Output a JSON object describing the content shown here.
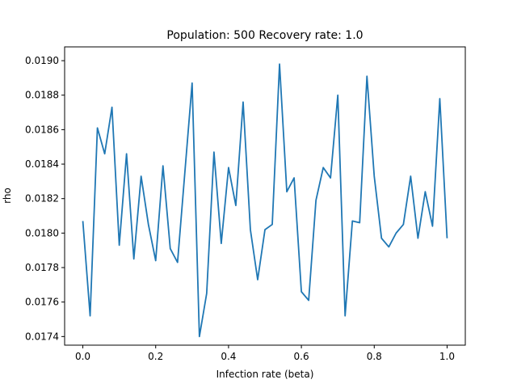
{
  "chart_data": {
    "type": "line",
    "title": "Population: 500 Recovery rate: 1.0",
    "xlabel": "Infection rate (beta)",
    "ylabel": "rho",
    "xlim": [
      -0.05,
      1.05
    ],
    "ylim": [
      0.01735,
      0.01908
    ],
    "xticks": [
      0.0,
      0.2,
      0.4,
      0.6,
      0.8,
      1.0
    ],
    "xtick_labels": [
      "0.0",
      "0.2",
      "0.4",
      "0.6",
      "0.8",
      "1.0"
    ],
    "yticks": [
      0.0174,
      0.0176,
      0.0178,
      0.018,
      0.0182,
      0.0184,
      0.0186,
      0.0188,
      0.019
    ],
    "ytick_labels": [
      "0.0174",
      "0.0176",
      "0.0178",
      "0.0180",
      "0.0182",
      "0.0184",
      "0.0186",
      "0.0188",
      "0.0190"
    ],
    "grid": false,
    "line_color": "#1f77b4",
    "series": [
      {
        "x": [
          0.0,
          0.02,
          0.04,
          0.06,
          0.08,
          0.1,
          0.12,
          0.14,
          0.16,
          0.18,
          0.2,
          0.22,
          0.24,
          0.26,
          0.28,
          0.3,
          0.32,
          0.34,
          0.36,
          0.38,
          0.4,
          0.42,
          0.44,
          0.46,
          0.48,
          0.5,
          0.52,
          0.54,
          0.56,
          0.58,
          0.6,
          0.62,
          0.64,
          0.66,
          0.68,
          0.7,
          0.72,
          0.74,
          0.76,
          0.78,
          0.8,
          0.82,
          0.84,
          0.86,
          0.88,
          0.9,
          0.92,
          0.94,
          0.96,
          0.98,
          1.0
        ],
        "values": [
          0.01807,
          0.01752,
          0.01861,
          0.01846,
          0.01873,
          0.01793,
          0.01846,
          0.01785,
          0.01833,
          0.01805,
          0.01784,
          0.01839,
          0.01791,
          0.01783,
          0.01835,
          0.01887,
          0.0174,
          0.01765,
          0.01847,
          0.01794,
          0.01838,
          0.01816,
          0.01876,
          0.01802,
          0.01773,
          0.01802,
          0.01805,
          0.01898,
          0.01824,
          0.01832,
          0.01766,
          0.01761,
          0.01819,
          0.01838,
          0.01832,
          0.0188,
          0.01752,
          0.01807,
          0.01806,
          0.01891,
          0.01833,
          0.01797,
          0.01792,
          0.018,
          0.01805,
          0.01833,
          0.01797,
          0.01824,
          0.01804,
          0.01878,
          0.01797
        ]
      }
    ]
  }
}
